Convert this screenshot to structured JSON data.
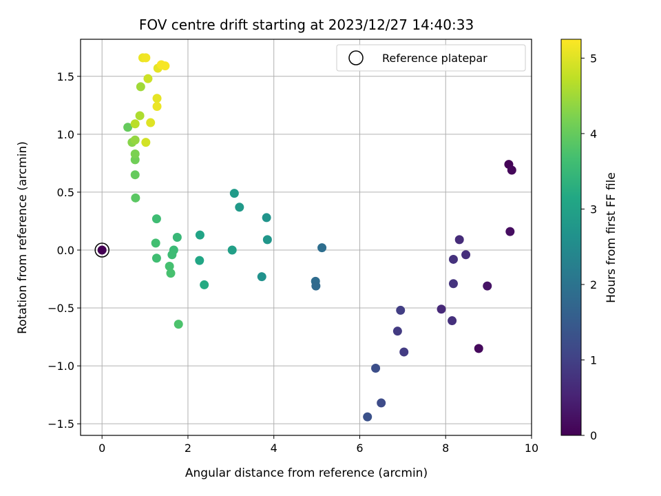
{
  "chart_data": {
    "type": "scatter",
    "title": "FOV centre drift starting at 2023/12/27 14:40:33",
    "xlabel": "Angular distance from reference (arcmin)",
    "ylabel": "Rotation from reference (arcmin)",
    "xlim": [
      -0.5,
      10.0
    ],
    "ylim": [
      -1.6,
      1.82
    ],
    "xticks": [
      0,
      2,
      4,
      6,
      8,
      10
    ],
    "xtick_labels": [
      "0",
      "2",
      "4",
      "6",
      "8",
      "10"
    ],
    "yticks": [
      -1.5,
      -1.0,
      -0.5,
      0.0,
      0.5,
      1.0,
      1.5
    ],
    "ytick_labels": [
      "−1.5",
      "−1.0",
      "−0.5",
      "0.0",
      "0.5",
      "1.0",
      "1.5"
    ],
    "grid": true,
    "legend": {
      "position": "top-right",
      "entries": [
        "Reference platepar"
      ]
    },
    "colormap": "viridis",
    "colorbar": {
      "label": "Hours from first FF file",
      "range": [
        0,
        5.25
      ],
      "ticks": [
        0,
        1,
        2,
        3,
        4,
        5
      ],
      "tick_labels": [
        "0",
        "1",
        "2",
        "3",
        "4",
        "5"
      ]
    },
    "reference_point": {
      "x": 0.0,
      "y": 0.0
    },
    "series": [
      {
        "points": [
          {
            "x": 9.47,
            "y": 0.74,
            "hours": 0.05
          },
          {
            "x": 9.54,
            "y": 0.69,
            "hours": 0.1
          },
          {
            "x": 9.5,
            "y": 0.16,
            "hours": 0.2
          },
          {
            "x": 8.97,
            "y": -0.31,
            "hours": 0.28
          },
          {
            "x": 8.77,
            "y": -0.85,
            "hours": 0.12
          },
          {
            "x": 8.32,
            "y": 0.09,
            "hours": 0.65
          },
          {
            "x": 8.47,
            "y": -0.04,
            "hours": 0.7
          },
          {
            "x": 8.18,
            "y": -0.08,
            "hours": 0.75
          },
          {
            "x": 8.18,
            "y": -0.29,
            "hours": 0.78
          },
          {
            "x": 7.9,
            "y": -0.51,
            "hours": 0.6
          },
          {
            "x": 8.15,
            "y": -0.61,
            "hours": 0.72
          },
          {
            "x": 6.95,
            "y": -0.52,
            "hours": 0.95
          },
          {
            "x": 6.88,
            "y": -0.7,
            "hours": 0.9
          },
          {
            "x": 7.03,
            "y": -0.88,
            "hours": 0.92
          },
          {
            "x": 6.37,
            "y": -1.02,
            "hours": 1.25
          },
          {
            "x": 6.5,
            "y": -1.32,
            "hours": 1.2
          },
          {
            "x": 6.18,
            "y": -1.44,
            "hours": 1.3
          },
          {
            "x": 5.12,
            "y": 0.02,
            "hours": 1.9
          },
          {
            "x": 4.97,
            "y": -0.27,
            "hours": 1.85
          },
          {
            "x": 4.98,
            "y": -0.31,
            "hours": 1.8
          },
          {
            "x": 3.08,
            "y": 0.49,
            "hours": 2.85
          },
          {
            "x": 3.2,
            "y": 0.37,
            "hours": 2.8
          },
          {
            "x": 3.83,
            "y": 0.28,
            "hours": 2.7
          },
          {
            "x": 3.85,
            "y": 0.09,
            "hours": 2.75
          },
          {
            "x": 3.03,
            "y": 0.0,
            "hours": 2.95
          },
          {
            "x": 3.72,
            "y": -0.23,
            "hours": 2.65
          },
          {
            "x": 2.28,
            "y": 0.13,
            "hours": 3.05
          },
          {
            "x": 2.27,
            "y": -0.09,
            "hours": 3.1
          },
          {
            "x": 2.38,
            "y": -0.3,
            "hours": 3.2
          },
          {
            "x": 1.27,
            "y": 0.27,
            "hours": 3.6
          },
          {
            "x": 1.75,
            "y": 0.11,
            "hours": 3.5
          },
          {
            "x": 1.25,
            "y": 0.06,
            "hours": 3.65
          },
          {
            "x": 1.67,
            "y": 0.0,
            "hours": 3.55
          },
          {
            "x": 1.63,
            "y": -0.04,
            "hours": 3.58
          },
          {
            "x": 1.27,
            "y": -0.07,
            "hours": 3.62
          },
          {
            "x": 1.57,
            "y": -0.14,
            "hours": 3.68
          },
          {
            "x": 1.6,
            "y": -0.2,
            "hours": 3.7
          },
          {
            "x": 1.78,
            "y": -0.64,
            "hours": 3.75
          },
          {
            "x": 0.78,
            "y": 0.45,
            "hours": 3.9
          },
          {
            "x": 0.77,
            "y": 0.65,
            "hours": 4.0
          },
          {
            "x": 0.77,
            "y": 0.78,
            "hours": 4.1
          },
          {
            "x": 0.77,
            "y": 0.83,
            "hours": 4.2
          },
          {
            "x": 0.7,
            "y": 0.93,
            "hours": 4.3
          },
          {
            "x": 0.77,
            "y": 0.95,
            "hours": 4.4
          },
          {
            "x": 0.6,
            "y": 1.06,
            "hours": 4.0
          },
          {
            "x": 0.77,
            "y": 1.09,
            "hours": 4.7
          },
          {
            "x": 0.88,
            "y": 1.16,
            "hours": 4.6
          },
          {
            "x": 1.02,
            "y": 0.93,
            "hours": 4.9
          },
          {
            "x": 1.13,
            "y": 1.1,
            "hours": 5.0
          },
          {
            "x": 0.9,
            "y": 1.41,
            "hours": 4.5
          },
          {
            "x": 1.07,
            "y": 1.48,
            "hours": 4.85
          },
          {
            "x": 1.28,
            "y": 1.31,
            "hours": 5.05
          },
          {
            "x": 1.28,
            "y": 1.24,
            "hours": 5.1
          },
          {
            "x": 0.95,
            "y": 1.66,
            "hours": 5.1
          },
          {
            "x": 1.02,
            "y": 1.66,
            "hours": 5.15
          },
          {
            "x": 1.3,
            "y": 1.57,
            "hours": 5.05
          },
          {
            "x": 1.38,
            "y": 1.6,
            "hours": 5.2
          },
          {
            "x": 1.47,
            "y": 1.59,
            "hours": 5.2
          },
          {
            "x": 0.0,
            "y": 0.0,
            "hours": 0.0
          }
        ]
      }
    ]
  }
}
